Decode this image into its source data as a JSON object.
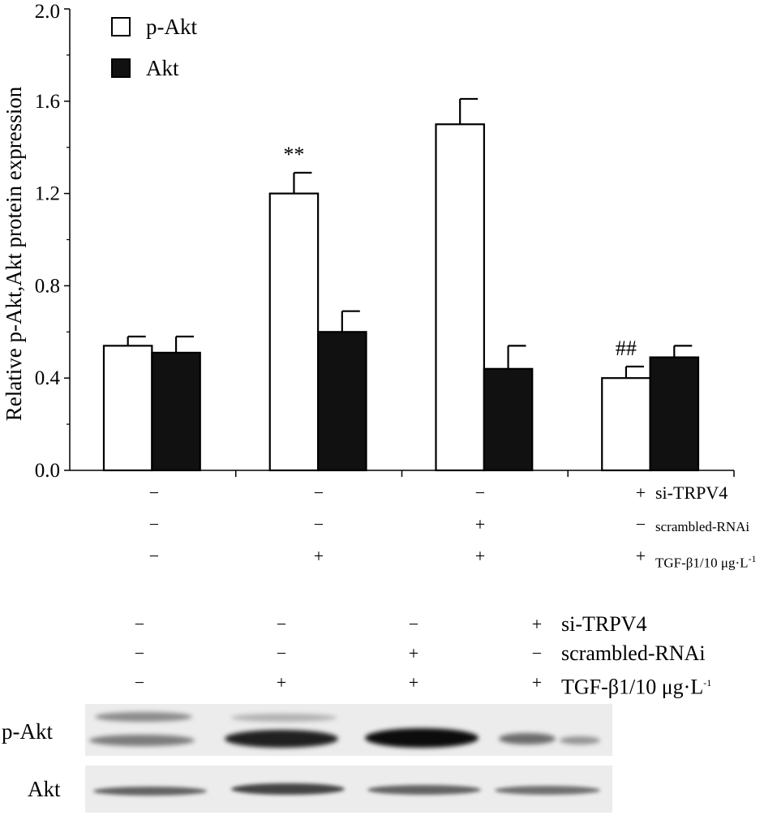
{
  "chart_data": {
    "type": "bar",
    "ylabel": "Relative p-Akt,Akt protein expression",
    "ylim": [
      0,
      2.0
    ],
    "yticks": [
      "0.0",
      "0.4",
      "0.8",
      "1.2",
      "1.6",
      "2.0"
    ],
    "groups": 4,
    "series": [
      {
        "name": "p-Akt",
        "color": "#ffffff",
        "values": [
          0.54,
          1.2,
          1.5,
          0.4
        ],
        "errors": [
          0.04,
          0.09,
          0.11,
          0.05
        ],
        "annotations": [
          "",
          "**",
          "",
          "##"
        ]
      },
      {
        "name": "Akt",
        "color": "#111111",
        "values": [
          0.51,
          0.6,
          0.44,
          0.49
        ],
        "errors": [
          0.07,
          0.09,
          0.1,
          0.05
        ],
        "annotations": [
          "",
          "",
          "",
          ""
        ]
      }
    ],
    "legend_position": "top-left"
  },
  "treatments_chart": {
    "rows": [
      {
        "label": "si-TRPV4",
        "signs": [
          "−",
          "−",
          "−",
          "+"
        ]
      },
      {
        "label": "scrambled-RNAi",
        "signs": [
          "−",
          "−",
          "+",
          "−"
        ]
      },
      {
        "label": "TGF-β1/10 μg·L",
        "sup": "-1",
        "signs": [
          "−",
          "+",
          "+",
          "+"
        ]
      }
    ]
  },
  "treatments_blot": {
    "rows": [
      {
        "label": "si-TRPV4",
        "signs": [
          "−",
          "−",
          "−",
          "+"
        ]
      },
      {
        "label": "scrambled-RNAi",
        "signs": [
          "−",
          "−",
          "+",
          "−"
        ]
      },
      {
        "label": "TGF-β1/10 μg·L",
        "sup": "-1",
        "signs": [
          "−",
          "+",
          "+",
          "+"
        ]
      }
    ]
  },
  "blot": {
    "rows": [
      {
        "label": "p-Akt"
      },
      {
        "label": "Akt"
      }
    ]
  }
}
